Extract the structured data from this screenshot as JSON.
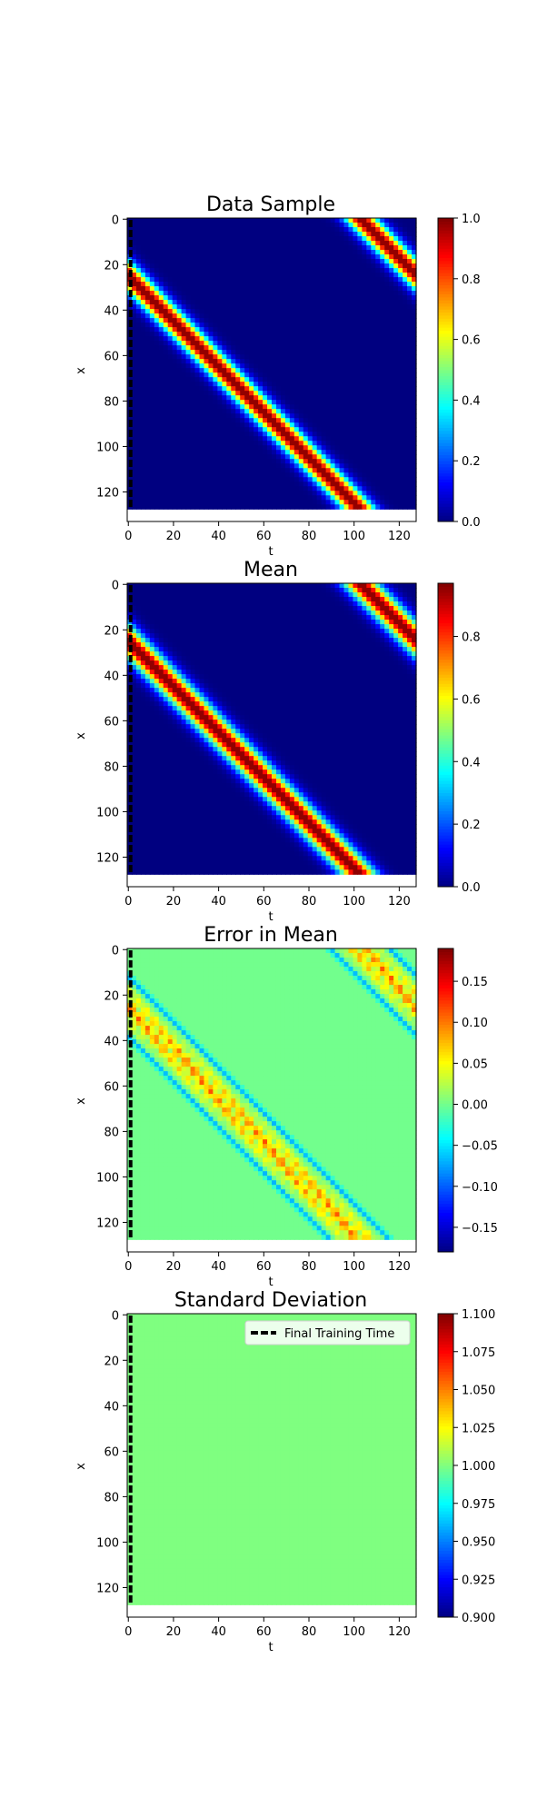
{
  "figure": {
    "background": "#ffffff"
  },
  "chart_data": [
    {
      "type": "heatmap",
      "title": "Data Sample",
      "xlabel": "t",
      "ylabel": "x",
      "x_range": [
        0,
        127
      ],
      "y_range": [
        0,
        127
      ],
      "xlim": [
        -0.5,
        127.5
      ],
      "ylim_inverted": [
        133,
        -0.5
      ],
      "x_ticks": [
        0,
        20,
        40,
        60,
        80,
        100,
        120
      ],
      "y_ticks": [
        0,
        20,
        40,
        60,
        80,
        100,
        120
      ],
      "colormap": "jet",
      "clim": [
        0.0,
        1.0
      ],
      "colorbar_ticks": [
        "0.0",
        "0.2",
        "0.4",
        "0.6",
        "0.8",
        "1.0"
      ],
      "colorbar_tick_values": [
        0.0,
        0.2,
        0.4,
        0.6,
        0.8,
        1.0
      ],
      "pattern": {
        "kind": "diagonal_band",
        "x_at_t0": 25,
        "slope_x_per_t": 1.0,
        "width": 5,
        "peak": 1.0,
        "error_band": false
      },
      "vline": {
        "t": 1,
        "style": "dashed",
        "color": "#000000"
      },
      "legend": null
    },
    {
      "type": "heatmap",
      "title": "Mean",
      "xlabel": "t",
      "ylabel": "x",
      "x_range": [
        0,
        127
      ],
      "y_range": [
        0,
        127
      ],
      "xlim": [
        -0.5,
        127.5
      ],
      "ylim_inverted": [
        133,
        -0.5
      ],
      "x_ticks": [
        0,
        20,
        40,
        60,
        80,
        100,
        120
      ],
      "y_ticks": [
        0,
        20,
        40,
        60,
        80,
        100,
        120
      ],
      "colormap": "jet",
      "clim": [
        0.0,
        0.97
      ],
      "colorbar_ticks": [
        "0.0",
        "0.2",
        "0.4",
        "0.6",
        "0.8"
      ],
      "colorbar_tick_values": [
        0.0,
        0.2,
        0.4,
        0.6,
        0.8
      ],
      "pattern": {
        "kind": "diagonal_band",
        "x_at_t0": 25,
        "slope_x_per_t": 1.0,
        "width": 5.5,
        "peak": 0.97,
        "error_band": false
      },
      "vline": {
        "t": 1,
        "style": "dashed",
        "color": "#000000"
      },
      "legend": null
    },
    {
      "type": "heatmap",
      "title": "Error in Mean",
      "xlabel": "t",
      "ylabel": "x",
      "x_range": [
        0,
        127
      ],
      "y_range": [
        0,
        127
      ],
      "xlim": [
        -0.5,
        127.5
      ],
      "ylim_inverted": [
        133,
        -0.5
      ],
      "x_ticks": [
        0,
        20,
        40,
        60,
        80,
        100,
        120
      ],
      "y_ticks": [
        0,
        20,
        40,
        60,
        80,
        100,
        120
      ],
      "colormap": "jet",
      "clim": [
        -0.18,
        0.19
      ],
      "colorbar_ticks": [
        "−0.15",
        "−0.10",
        "−0.05",
        "0.00",
        "0.05",
        "0.10",
        "0.15"
      ],
      "colorbar_tick_values": [
        -0.15,
        -0.1,
        -0.05,
        0.0,
        0.05,
        0.1,
        0.15
      ],
      "pattern": {
        "kind": "diagonal_band",
        "x_at_t0": 25,
        "slope_x_per_t": 1.0,
        "width": 5.5,
        "peak": 0.12,
        "error_band": true
      },
      "vline": {
        "t": 1,
        "style": "dashed",
        "color": "#000000"
      },
      "legend": null
    },
    {
      "type": "heatmap",
      "title": "Standard Deviation",
      "xlabel": "t",
      "ylabel": "x",
      "x_range": [
        0,
        127
      ],
      "y_range": [
        0,
        127
      ],
      "xlim": [
        -0.5,
        127.5
      ],
      "ylim_inverted": [
        133,
        -0.5
      ],
      "x_ticks": [
        0,
        20,
        40,
        60,
        80,
        100,
        120
      ],
      "y_ticks": [
        0,
        20,
        40,
        60,
        80,
        100,
        120
      ],
      "colormap": "jet",
      "clim": [
        0.9,
        1.1
      ],
      "colorbar_ticks": [
        "0.900",
        "0.925",
        "0.950",
        "0.975",
        "1.000",
        "1.025",
        "1.050",
        "1.075",
        "1.100"
      ],
      "colorbar_tick_values": [
        0.9,
        0.925,
        0.95,
        0.975,
        1.0,
        1.025,
        1.05,
        1.075,
        1.1
      ],
      "pattern": {
        "kind": "constant",
        "value": 1.0
      },
      "vline": {
        "t": 1,
        "style": "dashed",
        "color": "#000000"
      },
      "legend": {
        "label": "Final Training Time",
        "placement": "upper right"
      }
    }
  ]
}
